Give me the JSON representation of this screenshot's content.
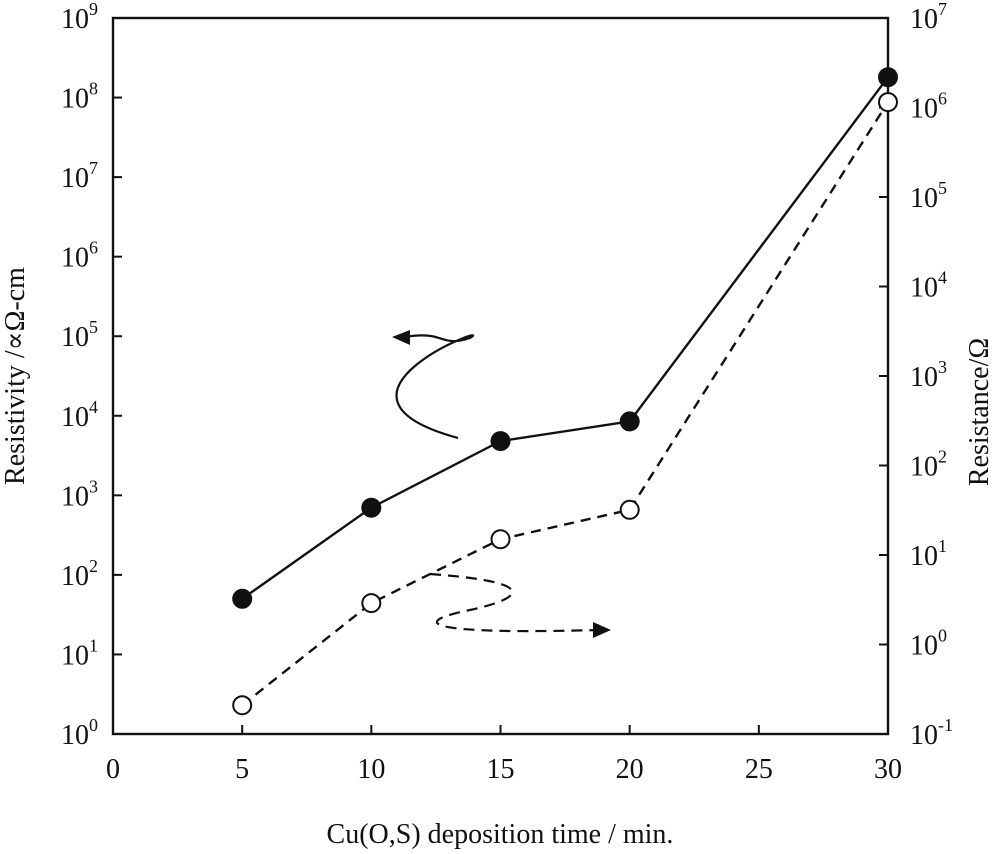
{
  "chart_data": {
    "type": "line",
    "xlabel": "Cu(O,S) deposition time / min.",
    "ylabel": "Resistivity /∝Ω-cm",
    "y2label": "Resistance/Ω",
    "xlim": [
      0,
      30
    ],
    "ylim": [
      1,
      1000000000
    ],
    "y2lim": [
      0.1,
      10000000
    ],
    "yscale": "log",
    "y2scale": "log",
    "grid": false,
    "legend": "none",
    "x_ticks": [
      "0",
      "5",
      "10",
      "15",
      "20",
      "25",
      "30"
    ],
    "y_ticks": [
      {
        "base": "10",
        "exp": "0"
      },
      {
        "base": "10",
        "exp": "1"
      },
      {
        "base": "10",
        "exp": "2"
      },
      {
        "base": "10",
        "exp": "3"
      },
      {
        "base": "10",
        "exp": "4"
      },
      {
        "base": "10",
        "exp": "5"
      },
      {
        "base": "10",
        "exp": "6"
      },
      {
        "base": "10",
        "exp": "7"
      },
      {
        "base": "10",
        "exp": "8"
      },
      {
        "base": "10",
        "exp": "9"
      }
    ],
    "y2_ticks": [
      {
        "base": "10",
        "exp": "-1"
      },
      {
        "base": "10",
        "exp": "0"
      },
      {
        "base": "10",
        "exp": "1"
      },
      {
        "base": "10",
        "exp": "2"
      },
      {
        "base": "10",
        "exp": "3"
      },
      {
        "base": "10",
        "exp": "4"
      },
      {
        "base": "10",
        "exp": "5"
      },
      {
        "base": "10",
        "exp": "6"
      },
      {
        "base": "10",
        "exp": "7"
      }
    ],
    "series": [
      {
        "axis": "left",
        "marker": "filled-circle",
        "line": "solid",
        "x": [
          5,
          10,
          15,
          20,
          30
        ],
        "y": [
          50,
          700,
          4800,
          8500,
          180000000
        ]
      },
      {
        "axis": "right",
        "marker": "open-circle",
        "line": "dashed",
        "x": [
          5,
          10,
          15,
          20,
          30
        ],
        "y": [
          0.21,
          2.9,
          15,
          32,
          1150000
        ]
      }
    ],
    "annotations": [
      {
        "type": "curved-arrow",
        "points_to": "left axis",
        "series": "filled-circle"
      },
      {
        "type": "curved-arrow",
        "points_to": "right axis",
        "series": "open-circle"
      }
    ]
  },
  "colors": {
    "ink": "#111111",
    "background": "#ffffff"
  }
}
